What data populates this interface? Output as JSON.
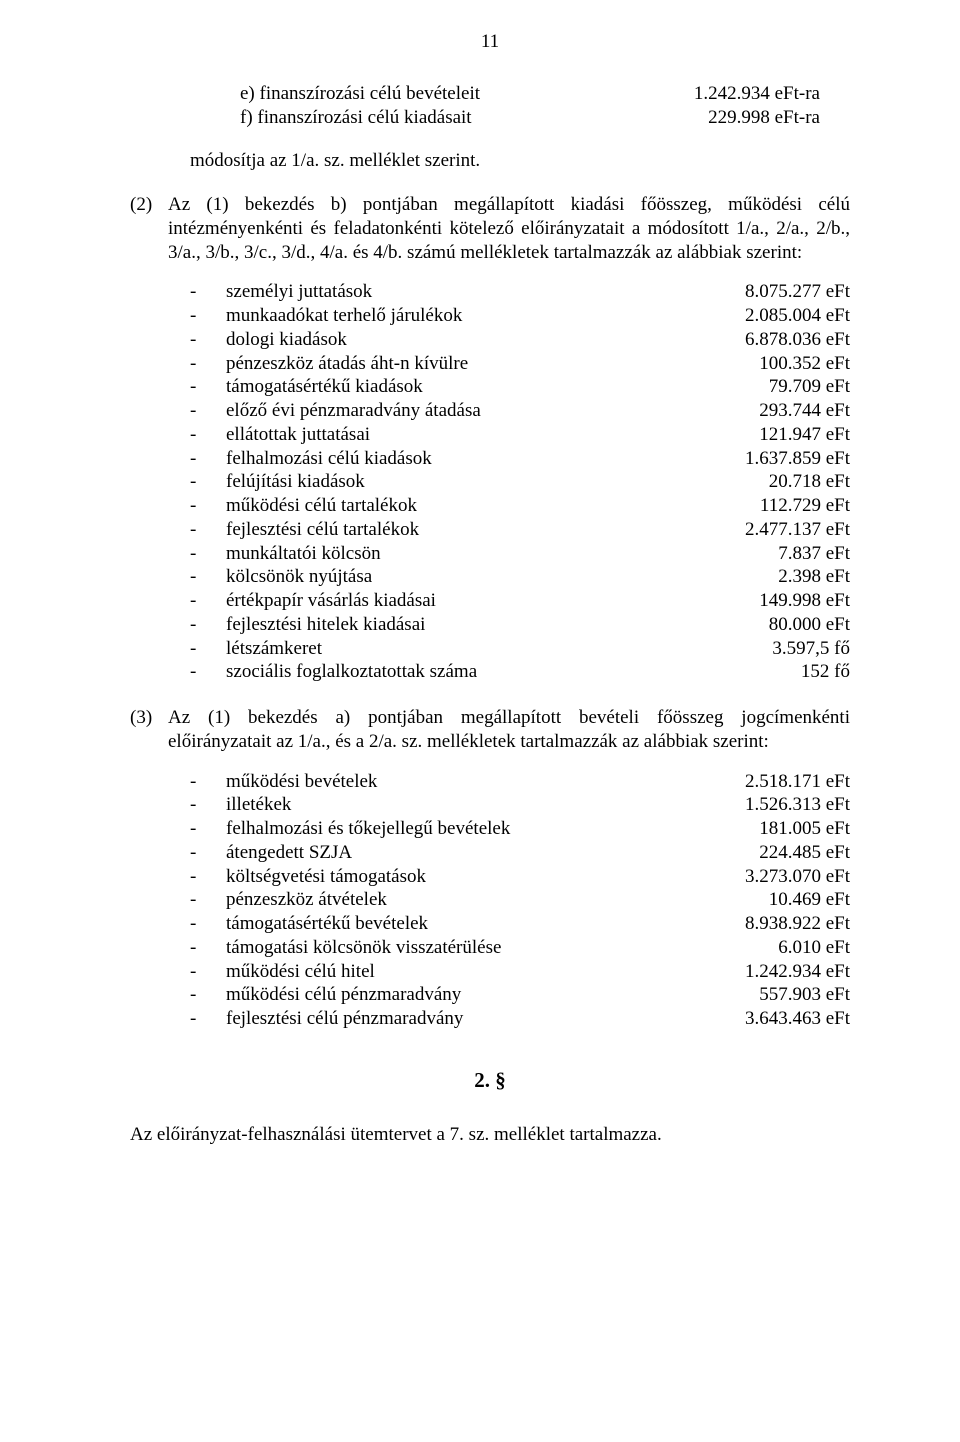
{
  "page_number": "11",
  "letters": [
    {
      "label": "e) finanszírozási célú bevételeit",
      "value": "1.242.934 eFt-ra"
    },
    {
      "label": "f) finanszírozási célú kiadásait",
      "value": "229.998 eFt-ra"
    }
  ],
  "mod_line": "módosítja az 1/a. sz. melléklet szerint.",
  "sec2_marker": "(2)",
  "sec2_body": "Az (1) bekezdés b) pontjában megállapított kiadási főösszeg, működési célú intézményenkénti és feladatonkénti kötelező előirányzatait a módosított 1/a., 2/a., 2/b., 3/a., 3/b., 3/c., 3/d., 4/a. és 4/b. számú mellékletek tartalmazzák az alábbiak szerint:",
  "list2": [
    {
      "label": "személyi juttatások",
      "value": "8.075.277 eFt"
    },
    {
      "label": "munkaadókat terhelő járulékok",
      "value": "2.085.004 eFt"
    },
    {
      "label": "dologi kiadások",
      "value": "6.878.036 eFt"
    },
    {
      "label": "pénzeszköz átadás áht-n kívülre",
      "value": "100.352 eFt"
    },
    {
      "label": "támogatásértékű kiadások",
      "value": "79.709 eFt"
    },
    {
      "label": "előző évi pénzmaradvány átadása",
      "value": "293.744 eFt"
    },
    {
      "label": "ellátottak juttatásai",
      "value": "121.947 eFt"
    },
    {
      "label": "felhalmozási célú kiadások",
      "value": "1.637.859 eFt"
    },
    {
      "label": "felújítási kiadások",
      "value": "20.718 eFt"
    },
    {
      "label": "működési célú tartalékok",
      "value": "112.729 eFt"
    },
    {
      "label": "fejlesztési célú tartalékok",
      "value": "2.477.137 eFt"
    },
    {
      "label": "munkáltatói kölcsön",
      "value": "7.837 eFt"
    },
    {
      "label": "kölcsönök nyújtása",
      "value": "2.398 eFt"
    },
    {
      "label": "értékpapír vásárlás kiadásai",
      "value": "149.998 eFt"
    },
    {
      "label": "fejlesztési hitelek kiadásai",
      "value": "80.000 eFt"
    },
    {
      "label": "létszámkeret",
      "value": "3.597,5 fő"
    },
    {
      "label": "szociális foglalkoztatottak száma",
      "value": "152 fő"
    }
  ],
  "sec3_marker": "(3)",
  "sec3_body": "Az (1) bekezdés a) pontjában megállapított bevételi főösszeg jogcímenkénti előirányzatait az 1/a., és a 2/a. sz. mellékletek tartalmazzák az alábbiak szerint:",
  "list3": [
    {
      "label": "működési bevételek",
      "value": "2.518.171 eFt"
    },
    {
      "label": "illetékek",
      "value": "1.526.313 eFt"
    },
    {
      "label": "felhalmozási és tőkejellegű bevételek",
      "value": "181.005 eFt"
    },
    {
      "label": "átengedett SZJA",
      "value": "224.485 eFt"
    },
    {
      "label": "költségvetési támogatások",
      "value": "3.273.070 eFt"
    },
    {
      "label": "pénzeszköz átvételek",
      "value": "10.469 eFt"
    },
    {
      "label": "támogatásértékű bevételek",
      "value": "8.938.922 eFt"
    },
    {
      "label": "támogatási kölcsönök visszatérülése",
      "value": "6.010 eFt"
    },
    {
      "label": "működési célú hitel",
      "value": "1.242.934 eFt"
    },
    {
      "label": "működési célú pénzmaradvány",
      "value": "557.903 eFt"
    },
    {
      "label": "fejlesztési célú pénzmaradvány",
      "value": "3.643.463 eFt"
    }
  ],
  "section_num": "2. §",
  "footer_line": "Az előirányzat-felhasználási ütemtervet a 7. sz. melléklet tartalmazza."
}
